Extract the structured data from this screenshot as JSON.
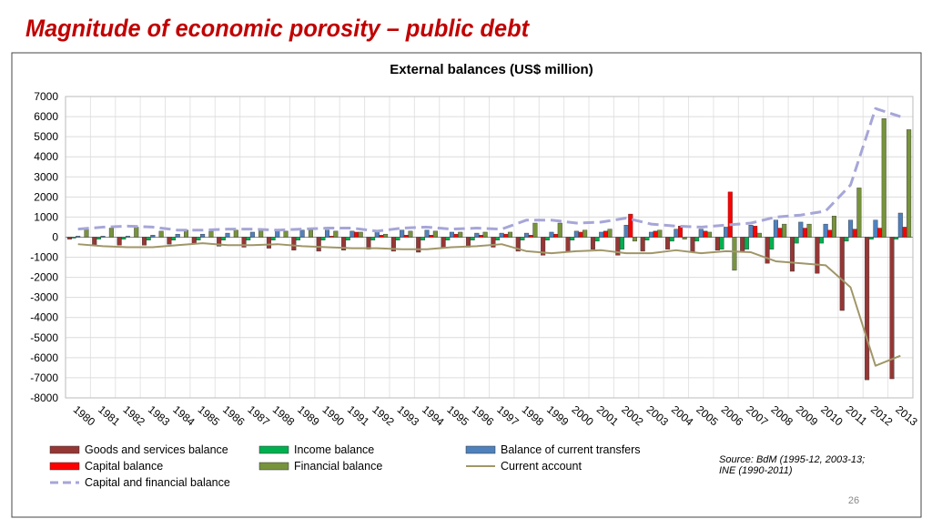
{
  "slide": {
    "title": "Magnitude of economic porosity – public debt",
    "page_number": 26
  },
  "chart_data": {
    "type": "bar",
    "title": "External balances (US$ million)",
    "categories": [
      "1980",
      "1981",
      "1982",
      "1983",
      "1984",
      "1985",
      "1986",
      "1987",
      "1988",
      "1989",
      "1990",
      "1991",
      "1992",
      "1993",
      "1994",
      "1995",
      "1996",
      "1997",
      "1998",
      "1999",
      "2000",
      "2001",
      "2002",
      "2003",
      "2004",
      "2005",
      "2006",
      "2007",
      "2008",
      "2009",
      "2010",
      "2011",
      "2012",
      "2013"
    ],
    "series": [
      {
        "name": "Goods and services balance",
        "type": "bar",
        "color": "#953735",
        "values": [
          -100,
          -400,
          -400,
          -400,
          -350,
          -350,
          -450,
          -500,
          -550,
          -650,
          -700,
          -650,
          -600,
          -700,
          -750,
          -550,
          -500,
          -500,
          -700,
          -900,
          -750,
          -600,
          -900,
          -700,
          -600,
          -750,
          -650,
          -700,
          -1300,
          -1700,
          -1800,
          -3650,
          -7100,
          -7050
        ]
      },
      {
        "name": "Income balance",
        "type": "bar",
        "color": "#00b050",
        "values": [
          -50,
          -100,
          -100,
          -150,
          -150,
          -150,
          -150,
          -150,
          -150,
          -150,
          -150,
          -150,
          -150,
          -150,
          -150,
          -150,
          -150,
          -150,
          -150,
          -150,
          -150,
          -200,
          -600,
          -150,
          -200,
          -200,
          -600,
          -600,
          -600,
          -300,
          -300,
          -200,
          -100,
          -100
        ]
      },
      {
        "name": "Balance of current transfers",
        "type": "bar",
        "color": "#4f81bd",
        "values": [
          50,
          50,
          50,
          100,
          150,
          150,
          200,
          250,
          350,
          350,
          350,
          300,
          300,
          350,
          350,
          250,
          200,
          200,
          200,
          250,
          300,
          250,
          600,
          250,
          400,
          400,
          500,
          600,
          850,
          750,
          650,
          850,
          850,
          1200
        ]
      },
      {
        "name": "Capital balance",
        "type": "bar",
        "color": "#ff0000",
        "values": [
          0,
          0,
          0,
          0,
          0,
          0,
          0,
          0,
          0,
          0,
          50,
          250,
          100,
          100,
          100,
          150,
          100,
          150,
          100,
          150,
          250,
          300,
          1150,
          300,
          550,
          300,
          2250,
          550,
          450,
          450,
          350,
          400,
          450,
          500
        ]
      },
      {
        "name": "Financial balance",
        "type": "bar",
        "color": "#77933c",
        "values": [
          400,
          450,
          500,
          300,
          350,
          300,
          350,
          350,
          300,
          350,
          300,
          250,
          150,
          300,
          300,
          250,
          250,
          250,
          700,
          700,
          350,
          400,
          -200,
          350,
          -100,
          250,
          -1650,
          200,
          650,
          650,
          1050,
          2450,
          5900,
          5350
        ]
      },
      {
        "name": "Current account",
        "type": "line",
        "color": "#a09668",
        "values": [
          -350,
          -450,
          -500,
          -500,
          -400,
          -300,
          -400,
          -400,
          -350,
          -450,
          -500,
          -550,
          -550,
          -600,
          -600,
          -500,
          -450,
          -350,
          -700,
          -800,
          -700,
          -650,
          -800,
          -800,
          -650,
          -800,
          -700,
          -750,
          -1200,
          -1300,
          -1400,
          -2500,
          -6400,
          -5900
        ]
      },
      {
        "name": "Capital and financial balance",
        "type": "line",
        "dashed": true,
        "color": "#a6a6d8",
        "values": [
          400,
          500,
          550,
          500,
          350,
          350,
          400,
          400,
          350,
          400,
          450,
          450,
          300,
          450,
          500,
          400,
          450,
          400,
          850,
          850,
          700,
          750,
          950,
          650,
          550,
          500,
          600,
          700,
          1000,
          1100,
          1300,
          2600,
          6400,
          6000
        ]
      }
    ],
    "ylim": [
      -8000,
      7000
    ],
    "yticks": [
      -8000,
      -7000,
      -6000,
      -5000,
      -4000,
      -3000,
      -2000,
      -1000,
      0,
      1000,
      2000,
      3000,
      4000,
      5000,
      6000,
      7000
    ],
    "grid": true,
    "source": [
      "Source: BdM (1995-12, 2003-13;",
      "INE (1990-2011)"
    ]
  }
}
